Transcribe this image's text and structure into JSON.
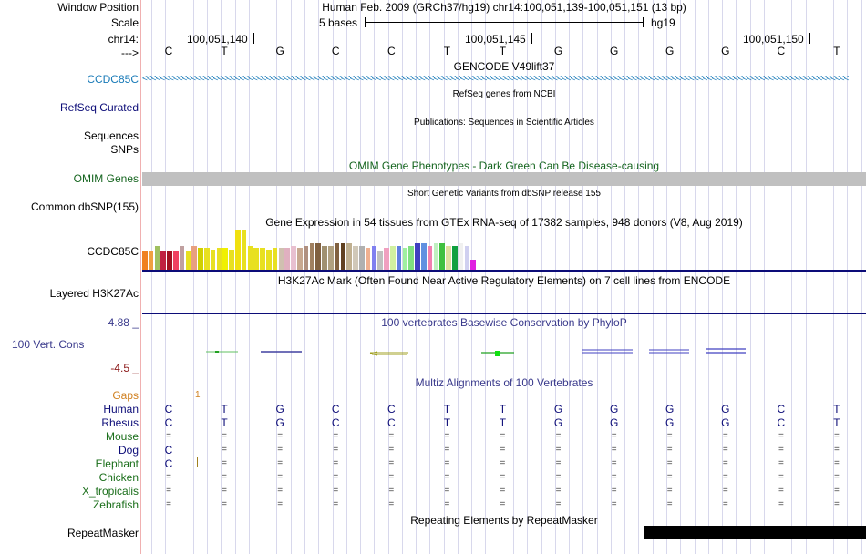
{
  "header": {
    "window_position_label": "Window Position",
    "scale_label": "Scale",
    "chrom_label": "chr14:",
    "arrow_label": "--->",
    "assembly_text": "Human Feb. 2009 (GRCh37/hg19)   chr14:100,051,139-100,051,151 (13 bp)",
    "scale_text": "5 bases",
    "scale_db": "hg19",
    "ruler_ticks": [
      "100,051,140",
      "100,051,145",
      "100,051,150"
    ]
  },
  "bases": [
    "C",
    "T",
    "G",
    "C",
    "C",
    "T",
    "T",
    "G",
    "G",
    "G",
    "G",
    "C",
    "T"
  ],
  "tracks": {
    "gencode": {
      "title": "GENCODE V49lift37",
      "label": "CCDC85C",
      "color": "#1a7bb8"
    },
    "refseq": {
      "title": "RefSeq genes from NCBI",
      "label": "RefSeq Curated",
      "color": "#0c0c78"
    },
    "publications": {
      "title": "Publications: Sequences in Scientific Articles",
      "label1": "Sequences",
      "label2": "SNPs"
    },
    "omim": {
      "title": "OMIM Gene Phenotypes - Dark Green Can Be Disease-causing",
      "label": "OMIM Genes",
      "color": "#14641e"
    },
    "dbsnp": {
      "title": "Short Genetic Variants from dbSNP release 155",
      "label": "Common dbSNP(155)"
    },
    "gtex": {
      "title": "Gene Expression in 54 tissues from GTEx RNA-seq of 17382 samples, 948 donors (V8, Aug 2019)",
      "label": "CCDC85C",
      "values": [
        0.45,
        0.45,
        0.6,
        0.45,
        0.45,
        0.45,
        0.6,
        0.45,
        0.6,
        0.55,
        0.55,
        0.5,
        0.55,
        0.55,
        0.5,
        1.0,
        1.0,
        0.6,
        0.55,
        0.55,
        0.5,
        0.55,
        0.55,
        0.55,
        0.6,
        0.55,
        0.6,
        0.65,
        0.65,
        0.6,
        0.6,
        0.65,
        0.65,
        0.65,
        0.6,
        0.6,
        0.55,
        0.6,
        0.45,
        0.55,
        0.6,
        0.6,
        0.55,
        0.6,
        0.65,
        0.65,
        0.6,
        0.65,
        0.65,
        0.6,
        0.6,
        0.65,
        0.6,
        0.25
      ],
      "colors": [
        "#f08020",
        "#f0a040",
        "#a0c060",
        "#c02040",
        "#a01020",
        "#f04060",
        "#c0a0a0",
        "#e8e020",
        "#e8a080",
        "#d0d000",
        "#e8e020",
        "#e8e020",
        "#e8e020",
        "#f0f000",
        "#e8e020",
        "#f0e010",
        "#e8e020",
        "#e8e020",
        "#e8e020",
        "#e8e020",
        "#e8e020",
        "#e8e020",
        "#d0c0b0",
        "#e0b0c0",
        "#e8c0d0",
        "#c8a890",
        "#b09080",
        "#a08060",
        "#806040",
        "#a09070",
        "#b0a080",
        "#806040",
        "#604020",
        "#c0b090",
        "#d0c8b8",
        "#b0b0b0",
        "#f0b090",
        "#8080f0",
        "#c0c0c0",
        "#f0a0c0",
        "#d0f0a0",
        "#6080e0",
        "#a0f0a0",
        "#80e080",
        "#4040c0",
        "#6090e0",
        "#f080b0",
        "#c0f0c0",
        "#40c040",
        "#e0e0a0",
        "#10a040",
        "#f0f0f0",
        "#d0d0f0",
        "#e020e0"
      ]
    },
    "h3k27ac": {
      "title": "H3K27Ac Mark (Often Found Near Active Regulatory Elements) on 7 cell lines from ENCODE",
      "label": "Layered H3K27Ac"
    },
    "phylop": {
      "title": "100 vertebrates Basewise Conservation by PhyloP",
      "label": "100 Vert. Cons",
      "max_label": "4.88 _",
      "min_label": "-4.5 _",
      "color": "#3a3a8c",
      "min_color": "#8c1a1a"
    },
    "multiz": {
      "title": "Multiz Alignments of 100 Vertebrates",
      "gaps_label": "Gaps",
      "gaps_mark": "1",
      "species": [
        {
          "name": "Human",
          "color": "#0c0c78"
        },
        {
          "name": "Rhesus",
          "color": "#0c0c78"
        },
        {
          "name": "Mouse",
          "color": "#1a6e1a"
        },
        {
          "name": "Dog",
          "color": "#0c0c78"
        },
        {
          "name": "Elephant",
          "color": "#1a6e1a"
        },
        {
          "name": "Chicken",
          "color": "#1a6e1a"
        },
        {
          "name": "X_tropicalis",
          "color": "#1a6e1a"
        },
        {
          "name": "Zebrafish",
          "color": "#1a6e1a"
        }
      ],
      "rows": [
        [
          "C",
          "T",
          "G",
          "C",
          "C",
          "T",
          "T",
          "G",
          "G",
          "G",
          "G",
          "C",
          "T"
        ],
        [
          "C",
          "T",
          "G",
          "C",
          "C",
          "T",
          "T",
          "G",
          "G",
          "G",
          "G",
          "C",
          "T"
        ],
        [
          "=",
          "=",
          "=",
          "=",
          "=",
          "=",
          "=",
          "=",
          "=",
          "=",
          "=",
          "=",
          "="
        ],
        [
          "C",
          "=",
          "=",
          "=",
          "=",
          "=",
          "=",
          "=",
          "=",
          "=",
          "=",
          "=",
          "="
        ],
        [
          "C",
          "=",
          "=",
          "=",
          "=",
          "=",
          "=",
          "=",
          "=",
          "=",
          "=",
          "=",
          "="
        ],
        [
          "=",
          "=",
          "=",
          "=",
          "=",
          "=",
          "=",
          "=",
          "=",
          "=",
          "=",
          "=",
          "="
        ],
        [
          "=",
          "=",
          "=",
          "=",
          "=",
          "=",
          "=",
          "=",
          "=",
          "=",
          "=",
          "=",
          "="
        ],
        [
          "=",
          "=",
          "=",
          "=",
          "=",
          "=",
          "=",
          "=",
          "=",
          "=",
          "=",
          "=",
          "="
        ]
      ]
    },
    "repeatmasker": {
      "title": "Repeating Elements by RepeatMasker",
      "label": "RepeatMasker"
    }
  }
}
